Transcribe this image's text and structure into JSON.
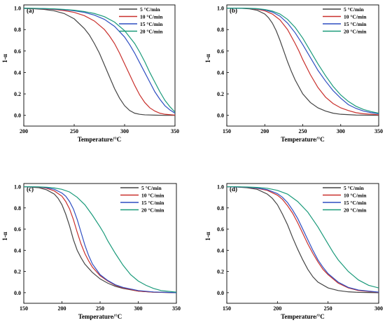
{
  "chart_data": [
    {
      "type": "line",
      "panel_label": "(a)",
      "xlabel": "Temperature/°C",
      "ylabel": "1-α",
      "xlim": [
        200,
        350
      ],
      "ylim": [
        -0.1,
        1.03
      ],
      "xticks": [
        200,
        250,
        300,
        350
      ],
      "yticks": [
        0.0,
        0.2,
        0.4,
        0.6,
        0.8,
        1.0
      ],
      "legend_position": "top-right",
      "grid": false,
      "series": [
        {
          "name": "5 °C/min",
          "color": "#444444",
          "x": [
            200,
            210,
            220,
            230,
            240,
            250,
            260,
            265,
            270,
            275,
            280,
            285,
            290,
            295,
            300,
            305,
            310,
            315,
            320,
            330,
            340,
            350
          ],
          "y": [
            0.997,
            0.994,
            0.988,
            0.975,
            0.95,
            0.9,
            0.81,
            0.75,
            0.67,
            0.58,
            0.47,
            0.36,
            0.25,
            0.16,
            0.09,
            0.045,
            0.02,
            0.01,
            0.005,
            0.002,
            0.0,
            0.0
          ]
        },
        {
          "name": "10 °C/min",
          "color": "#c9302c",
          "x": [
            200,
            210,
            220,
            230,
            240,
            250,
            260,
            270,
            280,
            285,
            290,
            295,
            300,
            305,
            310,
            315,
            320,
            325,
            330,
            335,
            340,
            350
          ],
          "y": [
            0.998,
            0.996,
            0.993,
            0.987,
            0.977,
            0.96,
            0.93,
            0.88,
            0.8,
            0.74,
            0.67,
            0.58,
            0.48,
            0.38,
            0.28,
            0.19,
            0.12,
            0.07,
            0.04,
            0.02,
            0.01,
            0.002
          ]
        },
        {
          "name": "15 °C/min",
          "color": "#2f4fc2",
          "x": [
            200,
            210,
            220,
            230,
            240,
            250,
            260,
            270,
            280,
            290,
            300,
            305,
            310,
            315,
            320,
            325,
            330,
            335,
            340,
            345,
            350
          ],
          "y": [
            0.999,
            0.997,
            0.995,
            0.991,
            0.985,
            0.975,
            0.96,
            0.935,
            0.895,
            0.83,
            0.73,
            0.66,
            0.58,
            0.49,
            0.4,
            0.31,
            0.22,
            0.15,
            0.09,
            0.05,
            0.02
          ]
        },
        {
          "name": "20 °C/min",
          "color": "#1a9a7a",
          "x": [
            200,
            210,
            220,
            230,
            240,
            250,
            260,
            270,
            280,
            290,
            300,
            310,
            315,
            320,
            325,
            330,
            335,
            340,
            345,
            350
          ],
          "y": [
            0.999,
            0.998,
            0.996,
            0.993,
            0.988,
            0.98,
            0.968,
            0.95,
            0.92,
            0.87,
            0.79,
            0.67,
            0.59,
            0.5,
            0.4,
            0.31,
            0.22,
            0.14,
            0.08,
            0.03
          ]
        }
      ]
    },
    {
      "type": "line",
      "panel_label": "(b)",
      "xlabel": "Temperature/°C",
      "ylabel": "1-α",
      "xlim": [
        150,
        350
      ],
      "ylim": [
        -0.1,
        1.03
      ],
      "xticks": [
        150,
        200,
        250,
        300,
        350
      ],
      "yticks": [
        0.0,
        0.2,
        0.4,
        0.6,
        0.8,
        1.0
      ],
      "legend_position": "top-right",
      "grid": false,
      "series": [
        {
          "name": "5 °C/min",
          "color": "#444444",
          "x": [
            150,
            170,
            180,
            190,
            200,
            205,
            210,
            215,
            220,
            225,
            230,
            235,
            240,
            250,
            260,
            270,
            280,
            290,
            300,
            320,
            350
          ],
          "y": [
            1.0,
            0.998,
            0.993,
            0.98,
            0.945,
            0.91,
            0.86,
            0.79,
            0.7,
            0.6,
            0.5,
            0.41,
            0.33,
            0.2,
            0.12,
            0.07,
            0.04,
            0.02,
            0.01,
            0.003,
            0.0
          ]
        },
        {
          "name": "10 °C/min",
          "color": "#c9302c",
          "x": [
            150,
            170,
            180,
            190,
            200,
            210,
            220,
            230,
            240,
            245,
            250,
            260,
            270,
            280,
            290,
            300,
            310,
            320,
            330,
            350
          ],
          "y": [
            1.0,
            0.999,
            0.996,
            0.99,
            0.975,
            0.945,
            0.89,
            0.8,
            0.67,
            0.6,
            0.52,
            0.38,
            0.26,
            0.17,
            0.11,
            0.07,
            0.045,
            0.025,
            0.015,
            0.005
          ]
        },
        {
          "name": "15 °C/min",
          "color": "#2f4fc2",
          "x": [
            150,
            170,
            180,
            190,
            200,
            210,
            220,
            230,
            240,
            250,
            260,
            265,
            270,
            280,
            290,
            300,
            310,
            320,
            330,
            340,
            350
          ],
          "y": [
            1.0,
            0.999,
            0.997,
            0.993,
            0.983,
            0.963,
            0.925,
            0.86,
            0.77,
            0.66,
            0.54,
            0.48,
            0.42,
            0.32,
            0.23,
            0.16,
            0.1,
            0.065,
            0.04,
            0.025,
            0.015
          ]
        },
        {
          "name": "20 °C/min",
          "color": "#1a9a7a",
          "x": [
            150,
            170,
            180,
            190,
            200,
            210,
            220,
            230,
            240,
            250,
            260,
            270,
            280,
            290,
            300,
            310,
            320,
            330,
            340,
            350
          ],
          "y": [
            1.0,
            0.999,
            0.998,
            0.995,
            0.987,
            0.972,
            0.945,
            0.895,
            0.82,
            0.72,
            0.6,
            0.48,
            0.37,
            0.27,
            0.19,
            0.13,
            0.085,
            0.055,
            0.035,
            0.02
          ]
        }
      ]
    },
    {
      "type": "line",
      "panel_label": "(c)",
      "xlabel": "Temperature/°C",
      "ylabel": "1-α",
      "xlim": [
        150,
        350
      ],
      "ylim": [
        -0.1,
        1.03
      ],
      "xticks": [
        150,
        200,
        250,
        300,
        350
      ],
      "yticks": [
        0.0,
        0.2,
        0.4,
        0.6,
        0.8,
        1.0
      ],
      "legend_position": "top-right",
      "grid": false,
      "series": [
        {
          "name": "5 °C/min",
          "color": "#444444",
          "x": [
            150,
            170,
            180,
            190,
            195,
            200,
            205,
            210,
            215,
            220,
            225,
            230,
            240,
            250,
            260,
            270,
            280,
            300,
            320,
            350
          ],
          "y": [
            1.0,
            0.99,
            0.97,
            0.93,
            0.89,
            0.83,
            0.74,
            0.63,
            0.5,
            0.4,
            0.33,
            0.27,
            0.19,
            0.13,
            0.09,
            0.06,
            0.04,
            0.015,
            0.005,
            0.0
          ]
        },
        {
          "name": "10 °C/min",
          "color": "#c9302c",
          "x": [
            150,
            170,
            180,
            190,
            200,
            205,
            210,
            215,
            220,
            225,
            230,
            235,
            240,
            250,
            260,
            270,
            280,
            300,
            320,
            350
          ],
          "y": [
            1.0,
            0.995,
            0.985,
            0.96,
            0.91,
            0.86,
            0.79,
            0.69,
            0.57,
            0.46,
            0.37,
            0.3,
            0.24,
            0.16,
            0.11,
            0.07,
            0.045,
            0.015,
            0.005,
            0.0
          ]
        },
        {
          "name": "15 °C/min",
          "color": "#2f4fc2",
          "x": [
            150,
            170,
            180,
            190,
            200,
            205,
            210,
            215,
            220,
            225,
            230,
            235,
            240,
            250,
            260,
            270,
            280,
            300,
            320,
            350
          ],
          "y": [
            1.0,
            0.997,
            0.99,
            0.975,
            0.94,
            0.91,
            0.86,
            0.79,
            0.69,
            0.57,
            0.45,
            0.35,
            0.27,
            0.17,
            0.115,
            0.075,
            0.05,
            0.02,
            0.007,
            0.0
          ]
        },
        {
          "name": "20 °C/min",
          "color": "#1a9a7a",
          "x": [
            150,
            170,
            180,
            190,
            200,
            210,
            220,
            230,
            240,
            250,
            255,
            260,
            265,
            270,
            280,
            290,
            300,
            310,
            320,
            330,
            350
          ],
          "y": [
            1.0,
            0.998,
            0.995,
            0.988,
            0.975,
            0.95,
            0.9,
            0.83,
            0.73,
            0.62,
            0.56,
            0.49,
            0.43,
            0.37,
            0.26,
            0.17,
            0.11,
            0.07,
            0.04,
            0.02,
            0.005
          ]
        }
      ]
    },
    {
      "type": "line",
      "panel_label": "(d)",
      "xlabel": "Temperature/°C",
      "ylabel": "1-α",
      "xlim": [
        150,
        300
      ],
      "ylim": [
        -0.1,
        1.03
      ],
      "xticks": [
        150,
        200,
        250,
        300
      ],
      "yticks": [
        0.0,
        0.2,
        0.4,
        0.6,
        0.8,
        1.0
      ],
      "legend_position": "top-right",
      "grid": false,
      "series": [
        {
          "name": "5 °C/min",
          "color": "#444444",
          "x": [
            150,
            160,
            170,
            180,
            190,
            195,
            200,
            205,
            210,
            215,
            220,
            225,
            230,
            235,
            240,
            250,
            260,
            270,
            280,
            300
          ],
          "y": [
            1.0,
            0.997,
            0.99,
            0.975,
            0.93,
            0.89,
            0.83,
            0.74,
            0.64,
            0.52,
            0.41,
            0.31,
            0.22,
            0.15,
            0.1,
            0.045,
            0.02,
            0.008,
            0.003,
            0.0
          ]
        },
        {
          "name": "10 °C/min",
          "color": "#c9302c",
          "x": [
            150,
            160,
            170,
            180,
            190,
            200,
            205,
            210,
            215,
            220,
            225,
            230,
            235,
            240,
            245,
            250,
            260,
            270,
            280,
            300
          ],
          "y": [
            1.0,
            0.998,
            0.994,
            0.985,
            0.965,
            0.92,
            0.88,
            0.82,
            0.75,
            0.66,
            0.56,
            0.46,
            0.37,
            0.29,
            0.22,
            0.17,
            0.09,
            0.045,
            0.02,
            0.003
          ]
        },
        {
          "name": "15 °C/min",
          "color": "#2f4fc2",
          "x": [
            150,
            160,
            170,
            180,
            190,
            200,
            205,
            210,
            215,
            220,
            225,
            230,
            235,
            240,
            245,
            250,
            260,
            270,
            280,
            300
          ],
          "y": [
            1.0,
            0.998,
            0.995,
            0.988,
            0.972,
            0.935,
            0.9,
            0.85,
            0.78,
            0.7,
            0.6,
            0.5,
            0.4,
            0.31,
            0.24,
            0.18,
            0.1,
            0.05,
            0.025,
            0.005
          ]
        },
        {
          "name": "20 °C/min",
          "color": "#1a9a7a",
          "x": [
            150,
            160,
            170,
            180,
            190,
            200,
            210,
            220,
            230,
            235,
            240,
            245,
            250,
            255,
            260,
            270,
            280,
            290,
            300
          ],
          "y": [
            1.0,
            0.999,
            0.997,
            0.993,
            0.985,
            0.965,
            0.93,
            0.86,
            0.76,
            0.69,
            0.62,
            0.54,
            0.46,
            0.38,
            0.31,
            0.2,
            0.12,
            0.07,
            0.045
          ]
        }
      ]
    }
  ]
}
